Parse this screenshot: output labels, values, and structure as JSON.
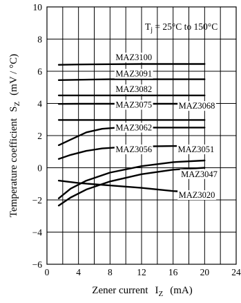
{
  "chart_data": {
    "type": "line",
    "annotation": "Tj = 25°C to 150°C",
    "annotation_main": "T",
    "annotation_sub": "j",
    "annotation_rest": " = 25°C to 150°C",
    "xlabel": "Zener current",
    "xlabel_var": "I",
    "xlabel_sub": "Z",
    "xlabel_unit": "(mA)",
    "ylabel": "Temperature coefficient",
    "ylabel_var": "S",
    "ylabel_sub": "Z",
    "ylabel_unit": "(mV / °C)",
    "xlim": [
      0,
      24
    ],
    "ylim": [
      -6,
      10
    ],
    "xticks": [
      0,
      4,
      8,
      12,
      16,
      20,
      24
    ],
    "yticks": [
      -6,
      -4,
      -2,
      0,
      2,
      4,
      6,
      8,
      10
    ],
    "grid": true,
    "series": [
      {
        "name": "MAZ3100",
        "x": [
          1.5,
          4,
          8,
          12,
          16,
          20
        ],
        "y": [
          6.4,
          6.42,
          6.44,
          6.45,
          6.45,
          6.45
        ]
      },
      {
        "name": "MAZ3091",
        "x": [
          1.5,
          4,
          8,
          12,
          16,
          20
        ],
        "y": [
          5.45,
          5.47,
          5.5,
          5.5,
          5.5,
          5.5
        ]
      },
      {
        "name": "MAZ3082",
        "x": [
          1.5,
          4,
          8,
          12,
          16,
          20
        ],
        "y": [
          4.5,
          4.5,
          4.5,
          4.5,
          4.5,
          4.5
        ]
      },
      {
        "name": "MAZ3075",
        "x": [
          1.5,
          4,
          8,
          12,
          16,
          20
        ],
        "y": [
          3.97,
          3.98,
          3.98,
          3.98,
          3.98,
          3.98
        ]
      },
      {
        "name": "MAZ3068",
        "x": [
          1.5,
          4,
          8,
          12,
          16,
          20
        ],
        "y": [
          2.97,
          2.97,
          2.97,
          2.97,
          2.97,
          2.97
        ]
      },
      {
        "name": "MAZ3062",
        "x": [
          1.5,
          3,
          5,
          7,
          9,
          12,
          16,
          20
        ],
        "y": [
          1.4,
          1.75,
          2.2,
          2.42,
          2.5,
          2.5,
          2.5,
          2.5
        ]
      },
      {
        "name": "MAZ3056",
        "x": [
          1.5,
          3,
          5,
          7,
          10,
          13,
          16,
          20
        ],
        "y": [
          0.55,
          0.8,
          1.05,
          1.2,
          1.3,
          1.33,
          1.35,
          1.35
        ]
      },
      {
        "name": "MAZ3051",
        "x": [
          1.5,
          3,
          5,
          8,
          12,
          16,
          20
        ],
        "y": [
          -1.9,
          -1.3,
          -0.8,
          -0.3,
          0.1,
          0.35,
          0.45
        ]
      },
      {
        "name": "MAZ3047",
        "x": [
          1.5,
          3,
          5,
          8,
          12,
          16,
          20
        ],
        "y": [
          -2.35,
          -1.85,
          -1.35,
          -0.85,
          -0.4,
          -0.12,
          0.0
        ]
      },
      {
        "name": "MAZ3020",
        "x": [
          1.5,
          4,
          8,
          12,
          16,
          20
        ],
        "y": [
          -0.8,
          -0.95,
          -1.1,
          -1.25,
          -1.45,
          -1.55
        ]
      }
    ],
    "labels": [
      {
        "text": "MAZ3100",
        "x": 8.7,
        "y": 6.68
      },
      {
        "text": "MAZ3091",
        "x": 8.7,
        "y": 5.67
      },
      {
        "text": "MAZ3082",
        "x": 8.7,
        "y": 4.7
      },
      {
        "text": "MAZ3075",
        "x": 8.7,
        "y": 3.74
      },
      {
        "text": "MAZ3068",
        "x": 16.7,
        "y": 3.67
      },
      {
        "text": "MAZ3062",
        "x": 8.7,
        "y": 2.32
      },
      {
        "text": "MAZ3056",
        "x": 8.7,
        "y": 0.97
      },
      {
        "text": "MAZ3051",
        "x": 16.6,
        "y": 0.97
      },
      {
        "text": "MAZ3047",
        "x": 17.0,
        "y": -0.57
      },
      {
        "text": "MAZ3020",
        "x": 16.7,
        "y": -1.87
      }
    ]
  }
}
